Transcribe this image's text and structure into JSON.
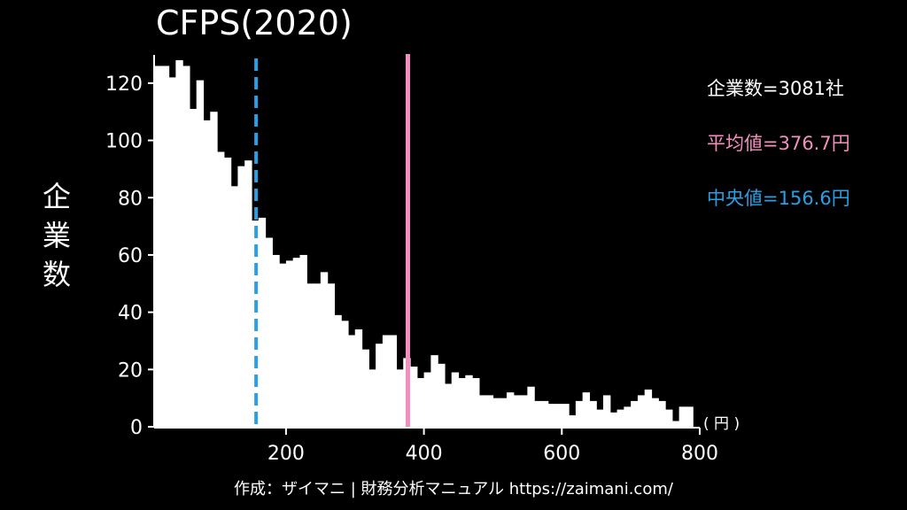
{
  "chart_data": {
    "type": "bar",
    "title": "CFPS(2020)",
    "xlabel": "（円）",
    "ylabel": "企業数",
    "xlim": [
      10,
      810
    ],
    "ylim": [
      0,
      128
    ],
    "bin_width": 10,
    "bins": [
      [
        10,
        126
      ],
      [
        20,
        126
      ],
      [
        30,
        122
      ],
      [
        40,
        128
      ],
      [
        50,
        126
      ],
      [
        60,
        111
      ],
      [
        70,
        121
      ],
      [
        80,
        107
      ],
      [
        90,
        110
      ],
      [
        100,
        96
      ],
      [
        110,
        94
      ],
      [
        120,
        84
      ],
      [
        130,
        91
      ],
      [
        140,
        93
      ],
      [
        150,
        72
      ],
      [
        160,
        73
      ],
      [
        170,
        66
      ],
      [
        180,
        60
      ],
      [
        190,
        57
      ],
      [
        200,
        58
      ],
      [
        210,
        59
      ],
      [
        220,
        60
      ],
      [
        230,
        50
      ],
      [
        240,
        50
      ],
      [
        250,
        54
      ],
      [
        260,
        50
      ],
      [
        270,
        39
      ],
      [
        280,
        37
      ],
      [
        290,
        32
      ],
      [
        300,
        34
      ],
      [
        310,
        27
      ],
      [
        320,
        20
      ],
      [
        330,
        29
      ],
      [
        340,
        32
      ],
      [
        350,
        32
      ],
      [
        360,
        20
      ],
      [
        370,
        24
      ],
      [
        380,
        21
      ],
      [
        390,
        17
      ],
      [
        400,
        19
      ],
      [
        410,
        25
      ],
      [
        420,
        22
      ],
      [
        430,
        15
      ],
      [
        440,
        19
      ],
      [
        450,
        17
      ],
      [
        460,
        18
      ],
      [
        470,
        17
      ],
      [
        480,
        11
      ],
      [
        490,
        11
      ],
      [
        500,
        10
      ],
      [
        510,
        10
      ],
      [
        520,
        12
      ],
      [
        530,
        11
      ],
      [
        540,
        11
      ],
      [
        550,
        14
      ],
      [
        560,
        9
      ],
      [
        570,
        9
      ],
      [
        580,
        8
      ],
      [
        590,
        8
      ],
      [
        600,
        8
      ],
      [
        610,
        4
      ],
      [
        620,
        9
      ],
      [
        630,
        12
      ],
      [
        640,
        9
      ],
      [
        650,
        6
      ],
      [
        660,
        11
      ],
      [
        670,
        5
      ],
      [
        680,
        6
      ],
      [
        690,
        7
      ],
      [
        700,
        9
      ],
      [
        710,
        11
      ],
      [
        720,
        13
      ],
      [
        730,
        10
      ],
      [
        740,
        9
      ],
      [
        750,
        6
      ],
      [
        760,
        2
      ],
      [
        770,
        7
      ],
      [
        780,
        7
      ]
    ],
    "xticks": [
      200,
      400,
      600,
      800
    ],
    "yticks": [
      0,
      20,
      40,
      60,
      80,
      100,
      120
    ],
    "mean_line": {
      "value": 376.7,
      "color": "#f38fbf"
    },
    "median_line": {
      "value": 156.6,
      "color": "#29a0e6"
    }
  },
  "stats": {
    "companies": "企業数=3081社",
    "mean": "平均値=376.7円",
    "median": "中央値=156.6円"
  },
  "labels": {
    "ylabel_chars": [
      "企",
      "業",
      "数"
    ],
    "unit": "( 円 )"
  },
  "footer": "作成：ザイマニ | 財務分析マニュアル https://zaimani.com/"
}
